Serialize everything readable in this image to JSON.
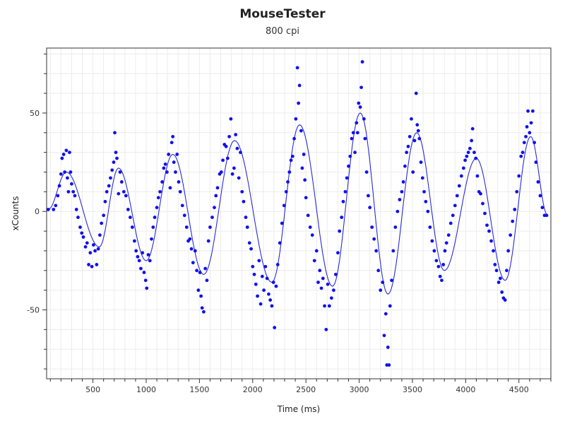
{
  "chart_data": {
    "type": "scatter",
    "title": "MouseTester",
    "subtitle": "800 cpi",
    "xlabel": "Time (ms)",
    "ylabel": "xCounts",
    "xlim": [
      65,
      4800
    ],
    "ylim": [
      -85,
      83
    ],
    "x_ticks": [
      500,
      1000,
      1500,
      2000,
      2500,
      3000,
      3500,
      4000,
      4500
    ],
    "y_ticks": [
      -50,
      0,
      50
    ],
    "grid": true,
    "point_color": "#1010ee",
    "line_color": "#2a2ad8",
    "cycle_peaks": [
      {
        "t": 250,
        "peak": 20
      },
      {
        "t": 560,
        "peak": -18
      },
      {
        "t": 740,
        "peak": 22
      },
      {
        "t": 1000,
        "peak": -25
      },
      {
        "t": 1250,
        "peak": 29
      },
      {
        "t": 1540,
        "peak": -32
      },
      {
        "t": 1830,
        "peak": 36
      },
      {
        "t": 2180,
        "peak": -36
      },
      {
        "t": 2440,
        "peak": 44
      },
      {
        "t": 2750,
        "peak": -38
      },
      {
        "t": 3010,
        "peak": 50
      },
      {
        "t": 3270,
        "peak": -42
      },
      {
        "t": 3540,
        "peak": 40
      },
      {
        "t": 3800,
        "peak": -30
      },
      {
        "t": 4100,
        "peak": 27
      },
      {
        "t": 4370,
        "peak": -35
      },
      {
        "t": 4610,
        "peak": 38
      }
    ],
    "series": [
      {
        "points": [
          [
            80,
            1
          ],
          [
            130,
            1
          ],
          [
            150,
            3
          ],
          [
            170,
            8
          ],
          [
            185,
            13
          ],
          [
            200,
            19
          ],
          [
            210,
            27
          ],
          [
            225,
            29
          ],
          [
            235,
            20
          ],
          [
            250,
            31
          ],
          [
            260,
            17
          ],
          [
            270,
            10
          ],
          [
            280,
            30
          ],
          [
            290,
            20
          ],
          [
            300,
            14
          ],
          [
            315,
            10
          ],
          [
            330,
            8
          ],
          [
            345,
            1
          ],
          [
            360,
            -3
          ],
          [
            380,
            -8
          ],
          [
            395,
            -11
          ],
          [
            410,
            -13
          ],
          [
            430,
            -18
          ],
          [
            445,
            -16
          ],
          [
            460,
            -27
          ],
          [
            475,
            -21
          ],
          [
            490,
            -28
          ],
          [
            505,
            -17
          ],
          [
            520,
            -20
          ],
          [
            535,
            -27
          ],
          [
            550,
            -19
          ],
          [
            565,
            -12
          ],
          [
            580,
            -6
          ],
          [
            600,
            -2
          ],
          [
            615,
            5
          ],
          [
            630,
            10
          ],
          [
            650,
            13
          ],
          [
            665,
            17
          ],
          [
            680,
            21
          ],
          [
            695,
            25
          ],
          [
            705,
            40
          ],
          [
            715,
            30
          ],
          [
            725,
            27
          ],
          [
            740,
            9
          ],
          [
            755,
            20
          ],
          [
            770,
            15
          ],
          [
            790,
            10
          ],
          [
            810,
            8
          ],
          [
            830,
            1
          ],
          [
            850,
            -3
          ],
          [
            870,
            -8
          ],
          [
            890,
            -15
          ],
          [
            905,
            -20
          ],
          [
            920,
            -23
          ],
          [
            935,
            -25
          ],
          [
            950,
            -29
          ],
          [
            965,
            -21
          ],
          [
            980,
            -31
          ],
          [
            995,
            -35
          ],
          [
            1005,
            -39
          ],
          [
            1020,
            -22
          ],
          [
            1035,
            -25
          ],
          [
            1050,
            -14
          ],
          [
            1065,
            -8
          ],
          [
            1080,
            -3
          ],
          [
            1100,
            2
          ],
          [
            1115,
            7
          ],
          [
            1130,
            10
          ],
          [
            1150,
            15
          ],
          [
            1165,
            22
          ],
          [
            1180,
            24
          ],
          [
            1195,
            20
          ],
          [
            1210,
            29
          ],
          [
            1225,
            12
          ],
          [
            1240,
            35
          ],
          [
            1250,
            38
          ],
          [
            1260,
            25
          ],
          [
            1275,
            20
          ],
          [
            1290,
            29
          ],
          [
            1305,
            15
          ],
          [
            1320,
            10
          ],
          [
            1340,
            3
          ],
          [
            1360,
            -2
          ],
          [
            1380,
            -8
          ],
          [
            1395,
            -15
          ],
          [
            1410,
            -14
          ],
          [
            1425,
            -19
          ],
          [
            1440,
            -26
          ],
          [
            1460,
            -20
          ],
          [
            1475,
            -30
          ],
          [
            1490,
            -40
          ],
          [
            1505,
            -31
          ],
          [
            1515,
            -43
          ],
          [
            1525,
            -49
          ],
          [
            1540,
            -51
          ],
          [
            1555,
            -29
          ],
          [
            1570,
            -35
          ],
          [
            1585,
            -15
          ],
          [
            1600,
            -8
          ],
          [
            1620,
            -3
          ],
          [
            1640,
            2
          ],
          [
            1655,
            8
          ],
          [
            1670,
            12
          ],
          [
            1690,
            19
          ],
          [
            1705,
            20
          ],
          [
            1720,
            26
          ],
          [
            1735,
            34
          ],
          [
            1750,
            33
          ],
          [
            1765,
            27
          ],
          [
            1780,
            38
          ],
          [
            1795,
            47
          ],
          [
            1810,
            19
          ],
          [
            1825,
            22
          ],
          [
            1840,
            39
          ],
          [
            1855,
            32
          ],
          [
            1870,
            17
          ],
          [
            1885,
            30
          ],
          [
            1900,
            10
          ],
          [
            1915,
            5
          ],
          [
            1935,
            -3
          ],
          [
            1950,
            -8
          ],
          [
            1970,
            -16
          ],
          [
            1985,
            -19
          ],
          [
            2000,
            -28
          ],
          [
            2015,
            -32
          ],
          [
            2030,
            -37
          ],
          [
            2045,
            -43
          ],
          [
            2060,
            -25
          ],
          [
            2075,
            -47
          ],
          [
            2090,
            -33
          ],
          [
            2105,
            -40
          ],
          [
            2120,
            -28
          ],
          [
            2135,
            -34
          ],
          [
            2150,
            -42
          ],
          [
            2165,
            -45
          ],
          [
            2180,
            -48
          ],
          [
            2195,
            -36
          ],
          [
            2205,
            -59
          ],
          [
            2220,
            -38
          ],
          [
            2235,
            -27
          ],
          [
            2255,
            -16
          ],
          [
            2275,
            -6
          ],
          [
            2295,
            3
          ],
          [
            2315,
            10
          ],
          [
            2330,
            15
          ],
          [
            2345,
            20
          ],
          [
            2360,
            26
          ],
          [
            2375,
            28
          ],
          [
            2390,
            37
          ],
          [
            2405,
            47
          ],
          [
            2420,
            73
          ],
          [
            2430,
            55
          ],
          [
            2440,
            64
          ],
          [
            2455,
            41
          ],
          [
            2465,
            22
          ],
          [
            2480,
            29
          ],
          [
            2490,
            16
          ],
          [
            2500,
            7
          ],
          [
            2520,
            -2
          ],
          [
            2540,
            -8
          ],
          [
            2560,
            -12
          ],
          [
            2580,
            -25
          ],
          [
            2600,
            -20
          ],
          [
            2615,
            -36
          ],
          [
            2630,
            -30
          ],
          [
            2645,
            -39
          ],
          [
            2660,
            -34
          ],
          [
            2675,
            -48
          ],
          [
            2690,
            -60
          ],
          [
            2705,
            -37
          ],
          [
            2720,
            -48
          ],
          [
            2740,
            -44
          ],
          [
            2760,
            -40
          ],
          [
            2780,
            -32
          ],
          [
            2800,
            -21
          ],
          [
            2815,
            -10
          ],
          [
            2835,
            -3
          ],
          [
            2850,
            5
          ],
          [
            2870,
            10
          ],
          [
            2885,
            17
          ],
          [
            2900,
            23
          ],
          [
            2915,
            28
          ],
          [
            2930,
            37
          ],
          [
            2945,
            40
          ],
          [
            2960,
            30
          ],
          [
            2975,
            45
          ],
          [
            2985,
            40
          ],
          [
            2995,
            55
          ],
          [
            3010,
            53
          ],
          [
            3020,
            63
          ],
          [
            3030,
            76
          ],
          [
            3045,
            47
          ],
          [
            3055,
            37
          ],
          [
            3070,
            20
          ],
          [
            3085,
            8
          ],
          [
            3100,
            2
          ],
          [
            3120,
            -8
          ],
          [
            3140,
            -14
          ],
          [
            3160,
            -20
          ],
          [
            3180,
            -30
          ],
          [
            3200,
            -40
          ],
          [
            3220,
            -36
          ],
          [
            3235,
            -63
          ],
          [
            3250,
            -52
          ],
          [
            3260,
            -78
          ],
          [
            3270,
            -69
          ],
          [
            3280,
            -78
          ],
          [
            3290,
            -48
          ],
          [
            3305,
            -35
          ],
          [
            3320,
            -20
          ],
          [
            3340,
            -8
          ],
          [
            3360,
            0
          ],
          [
            3380,
            6
          ],
          [
            3400,
            10
          ],
          [
            3415,
            15
          ],
          [
            3430,
            23
          ],
          [
            3445,
            30
          ],
          [
            3460,
            33
          ],
          [
            3475,
            38
          ],
          [
            3490,
            47
          ],
          [
            3505,
            20
          ],
          [
            3520,
            36
          ],
          [
            3535,
            60
          ],
          [
            3545,
            44
          ],
          [
            3555,
            41
          ],
          [
            3565,
            37
          ],
          [
            3580,
            25
          ],
          [
            3595,
            17
          ],
          [
            3610,
            10
          ],
          [
            3625,
            5
          ],
          [
            3645,
            0
          ],
          [
            3665,
            -8
          ],
          [
            3685,
            -15
          ],
          [
            3705,
            -20
          ],
          [
            3725,
            -25
          ],
          [
            3745,
            -28
          ],
          [
            3760,
            -33
          ],
          [
            3775,
            -35
          ],
          [
            3790,
            -27
          ],
          [
            3805,
            -20
          ],
          [
            3820,
            -16
          ],
          [
            3840,
            -12
          ],
          [
            3860,
            -6
          ],
          [
            3880,
            -2
          ],
          [
            3900,
            3
          ],
          [
            3920,
            8
          ],
          [
            3940,
            13
          ],
          [
            3960,
            18
          ],
          [
            3980,
            22
          ],
          [
            3995,
            26
          ],
          [
            4010,
            28
          ],
          [
            4025,
            30
          ],
          [
            4040,
            32
          ],
          [
            4055,
            36
          ],
          [
            4065,
            42
          ],
          [
            4080,
            30
          ],
          [
            4095,
            27
          ],
          [
            4110,
            18
          ],
          [
            4125,
            10
          ],
          [
            4140,
            9
          ],
          [
            4160,
            4
          ],
          [
            4180,
            -1
          ],
          [
            4200,
            -7
          ],
          [
            4220,
            -10
          ],
          [
            4240,
            -15
          ],
          [
            4260,
            -20
          ],
          [
            4275,
            -27
          ],
          [
            4290,
            -30
          ],
          [
            4310,
            -36
          ],
          [
            4325,
            -34
          ],
          [
            4340,
            -41
          ],
          [
            4355,
            -44
          ],
          [
            4370,
            -45
          ],
          [
            4385,
            -30
          ],
          [
            4400,
            -20
          ],
          [
            4420,
            -12
          ],
          [
            4440,
            -5
          ],
          [
            4460,
            1
          ],
          [
            4480,
            10
          ],
          [
            4500,
            18
          ],
          [
            4520,
            28
          ],
          [
            4535,
            30
          ],
          [
            4550,
            35
          ],
          [
            4565,
            38
          ],
          [
            4575,
            43
          ],
          [
            4585,
            51
          ],
          [
            4600,
            40
          ],
          [
            4615,
            45
          ],
          [
            4630,
            51
          ],
          [
            4645,
            35
          ],
          [
            4660,
            25
          ],
          [
            4680,
            15
          ],
          [
            4700,
            8
          ],
          [
            4720,
            2
          ],
          [
            4740,
            -2
          ],
          [
            4760,
            -2
          ]
        ]
      }
    ]
  }
}
